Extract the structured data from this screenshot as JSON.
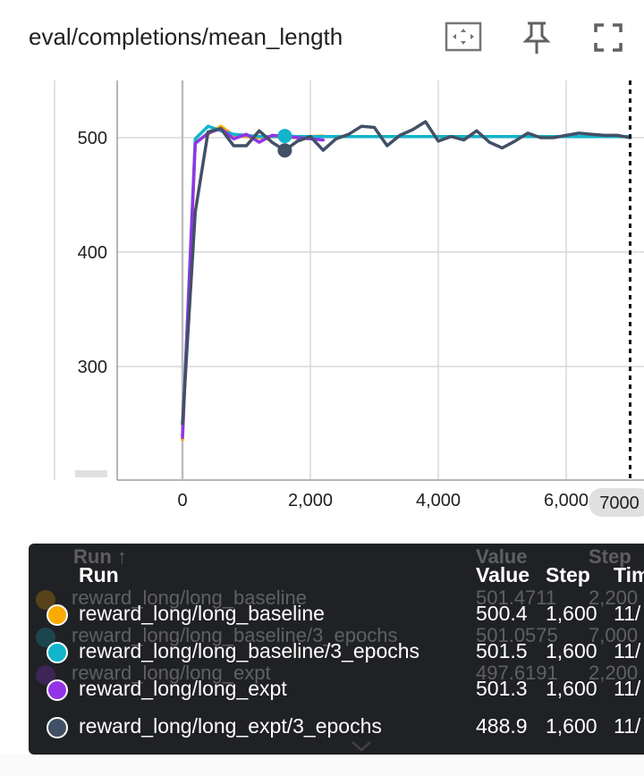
{
  "card": {
    "title": "eval/completions/mean_length"
  },
  "toolbar": {
    "fit_icon": "fit-domain-icon",
    "pin_icon": "pin-icon",
    "fullscreen_icon": "fullscreen-icon"
  },
  "colors": {
    "long_baseline": "#f9ab00",
    "long_baseline_3": "#12b5cb",
    "long_expt": "#9334e6",
    "long_expt_3": "#425066"
  },
  "chart_data": {
    "type": "line",
    "xlabel": "",
    "ylabel": "",
    "xlim": [
      -1000,
      7200
    ],
    "ylim": [
      290,
      540
    ],
    "x_ticks": [
      "0",
      "2,000",
      "4,000",
      "6,000"
    ],
    "y_ticks": [
      "300",
      "400",
      "500"
    ],
    "cursor_label": "7000",
    "cursor_step": 7000,
    "hover_step": 1600,
    "series": [
      {
        "name": "reward_long/long_baseline",
        "color": "#f9ab00",
        "x": [
          0,
          200,
          400,
          600,
          800,
          1000,
          1200,
          1400,
          1600,
          1800,
          2000,
          2200
        ],
        "y": [
          236,
          496,
          503,
          510,
          502,
          501,
          500,
          501,
          500.4,
          500,
          501,
          501.5
        ]
      },
      {
        "name": "reward_long/long_baseline/3_epochs",
        "color": "#12b5cb",
        "x": [
          0,
          200,
          400,
          600,
          800,
          1000,
          1200,
          1400,
          1600,
          1800,
          2000,
          2500,
          3000,
          3500,
          4000,
          4500,
          5000,
          5500,
          6000,
          6500,
          7000
        ],
        "y": [
          240,
          499,
          510,
          506,
          503,
          502,
          501,
          501,
          501.5,
          501,
          501,
          501,
          501,
          501,
          501,
          501,
          501,
          501,
          501,
          501,
          501
        ]
      },
      {
        "name": "reward_long/long_expt",
        "color": "#9334e6",
        "x": [
          0,
          200,
          400,
          600,
          800,
          1000,
          1200,
          1400,
          1600,
          1800,
          2000,
          2200
        ],
        "y": [
          238,
          495,
          504,
          508,
          499,
          503,
          496,
          502,
          501.3,
          500,
          499,
          498
        ]
      },
      {
        "name": "reward_long/long_expt/3_epochs",
        "color": "#425066",
        "x": [
          0,
          200,
          400,
          600,
          800,
          1000,
          1200,
          1400,
          1600,
          1800,
          2000,
          2200,
          2400,
          2600,
          2800,
          3000,
          3200,
          3400,
          3600,
          3800,
          4000,
          4200,
          4400,
          4600,
          4800,
          5000,
          5200,
          5400,
          5600,
          5800,
          6000,
          6200,
          6400,
          6600,
          6800,
          7000
        ],
        "y": [
          250,
          435,
          505,
          508,
          493,
          493,
          506,
          496,
          488.9,
          497,
          501,
          489,
          499,
          503,
          510,
          509,
          493,
          502,
          507,
          514,
          497,
          501,
          498,
          506,
          496,
          491,
          497,
          504,
          500,
          500,
          502,
          504,
          503,
          502,
          502,
          500
        ]
      }
    ]
  },
  "table": {
    "ghost_header": {
      "run": "Run ↑",
      "value": "Value",
      "step": "Step"
    },
    "ghost_rows": [
      {
        "run": "reward_long/long_baseline",
        "value": "501.4711",
        "step": "2,200",
        "color": "#f9ab00"
      },
      {
        "run": "reward_long/long_baseline/3_epochs",
        "value": "501.0575",
        "step": "7,000",
        "color": "#12b5cb"
      },
      {
        "run": "reward_long/long_expt",
        "value": "497.6191",
        "step": "2,200",
        "color": "#9334e6"
      }
    ],
    "header": {
      "run": "Run",
      "value": "Value",
      "step": "Step",
      "time": "Time"
    },
    "rows": [
      {
        "run": "reward_long/long_baseline",
        "value": "500.4",
        "step": "1,600",
        "time": "11/",
        "color": "#f9ab00"
      },
      {
        "run": "reward_long/long_baseline/3_epochs",
        "value": "501.5",
        "step": "1,600",
        "time": "11/",
        "color": "#12b5cb"
      },
      {
        "run": "reward_long/long_expt",
        "value": "501.3",
        "step": "1,600",
        "time": "11/",
        "color": "#9334e6"
      },
      {
        "run": "reward_long/long_expt/3_epochs",
        "value": "488.9",
        "step": "1,600",
        "time": "11/",
        "color": "#425066"
      }
    ]
  }
}
